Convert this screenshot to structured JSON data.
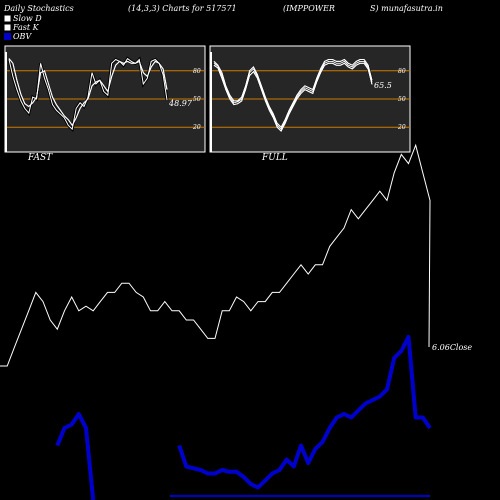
{
  "header": {
    "title": "Daily Stochastics",
    "params": "(14,3,3) Charts for 517571",
    "symbol": "(IMPPOWER",
    "site": "S) munafasutra.in"
  },
  "legend": [
    {
      "label": "Slow  D",
      "swatch": "#ffffff"
    },
    {
      "label": "Fast K",
      "swatch": "#ffffff"
    },
    {
      "label": "OBV",
      "swatch": "#0000cc"
    }
  ],
  "colors": {
    "background": "#000000",
    "panel": "#262626",
    "guide": "#cc7a00",
    "line": "#ffffff",
    "obv": "#0000cc"
  },
  "chart_data": [
    {
      "type": "line",
      "panel_label": "FAST",
      "ylim": [
        0,
        100
      ],
      "yticks": [
        "80",
        "50",
        "20"
      ],
      "levels": [
        80,
        50,
        20
      ],
      "last_value_label": "48.97",
      "x": [
        1,
        2,
        3,
        4,
        5,
        6,
        7,
        8,
        9,
        10,
        11,
        12,
        13,
        14,
        15,
        16,
        17,
        18,
        19,
        20,
        21,
        22,
        23,
        24,
        25,
        26,
        27,
        28,
        29,
        30,
        31,
        32,
        33,
        34,
        35,
        36,
        37,
        38,
        39,
        40,
        41
      ],
      "series": [
        {
          "values": [
            92,
            74,
            60,
            48,
            40,
            35,
            52,
            50,
            88,
            72,
            60,
            44,
            38,
            34,
            30,
            22,
            18,
            40,
            46,
            42,
            52,
            78,
            66,
            70,
            58,
            54,
            88,
            92,
            90,
            86,
            93,
            90,
            88,
            92,
            66,
            72,
            90,
            92,
            88,
            76,
            49
          ]
        },
        {
          "values": [
            93,
            88,
            70,
            55,
            45,
            42,
            46,
            52,
            78,
            80,
            66,
            52,
            44,
            38,
            32,
            28,
            22,
            30,
            40,
            46,
            50,
            64,
            68,
            70,
            64,
            58,
            74,
            86,
            90,
            88,
            90,
            88,
            88,
            90,
            78,
            74,
            84,
            90,
            88,
            82,
            60
          ]
        }
      ]
    },
    {
      "type": "line",
      "panel_label": "FULL",
      "ylim": [
        0,
        100
      ],
      "yticks": [
        "80",
        "50",
        "20"
      ],
      "levels": [
        80,
        50,
        20
      ],
      "last_value_label": "65.5",
      "x": [
        1,
        2,
        3,
        4,
        5,
        6,
        7,
        8,
        9,
        10,
        11,
        12,
        13,
        14,
        15,
        16,
        17,
        18,
        19,
        20,
        21,
        22,
        23,
        24,
        25,
        26,
        27,
        28,
        29,
        30,
        31,
        32,
        33,
        34,
        35,
        36,
        37,
        38,
        39,
        40,
        41
      ],
      "series": [
        {
          "values": [
            88,
            85,
            75,
            62,
            52,
            46,
            47,
            50,
            62,
            78,
            82,
            74,
            62,
            50,
            40,
            32,
            22,
            18,
            26,
            36,
            44,
            52,
            58,
            62,
            60,
            58,
            70,
            80,
            88,
            90,
            90,
            88,
            88,
            90,
            86,
            84,
            88,
            90,
            90,
            84,
            68
          ]
        },
        {
          "values": [
            86,
            83,
            72,
            60,
            50,
            44,
            45,
            48,
            60,
            75,
            79,
            72,
            60,
            48,
            38,
            30,
            20,
            16,
            24,
            34,
            42,
            50,
            56,
            60,
            58,
            56,
            68,
            78,
            86,
            88,
            88,
            86,
            86,
            88,
            84,
            82,
            86,
            88,
            88,
            82,
            65.5
          ]
        },
        {
          "values": [
            90,
            86,
            78,
            64,
            54,
            48,
            48,
            52,
            64,
            80,
            84,
            76,
            64,
            52,
            42,
            34,
            24,
            20,
            28,
            38,
            46,
            54,
            60,
            64,
            62,
            60,
            72,
            82,
            90,
            92,
            92,
            90,
            90,
            92,
            88,
            86,
            90,
            92,
            92,
            86,
            70
          ]
        }
      ]
    },
    {
      "type": "line",
      "close_label": "6.06Close",
      "series": [
        {
          "values": [
            10,
            10,
            14,
            18,
            22,
            26,
            24,
            20,
            18,
            22,
            25,
            22,
            23,
            22,
            24,
            26,
            26,
            28,
            28,
            26,
            25,
            22,
            22,
            24,
            22,
            22,
            20,
            20,
            18,
            16,
            16,
            22,
            22,
            25,
            24,
            22,
            24,
            24,
            26,
            26,
            28,
            30,
            32,
            30,
            32,
            32,
            36,
            38,
            40,
            44,
            42,
            44,
            46,
            48,
            46,
            52,
            56,
            54,
            58,
            52,
            46
          ]
        },
        {
          "values": [
            0,
            0,
            0,
            0,
            0,
            0,
            0,
            0,
            30,
            40,
            42,
            48,
            40,
            0,
            0,
            0,
            0,
            0,
            0,
            0,
            0,
            0,
            0,
            0,
            0,
            30,
            18,
            17,
            16,
            14,
            14,
            16,
            15,
            15,
            12,
            8,
            6,
            10,
            14,
            16,
            22,
            18,
            30,
            20,
            28,
            32,
            40,
            46,
            48,
            46,
            50,
            54,
            56,
            58,
            62,
            80,
            84,
            92,
            46,
            46,
            40
          ]
        }
      ]
    }
  ]
}
